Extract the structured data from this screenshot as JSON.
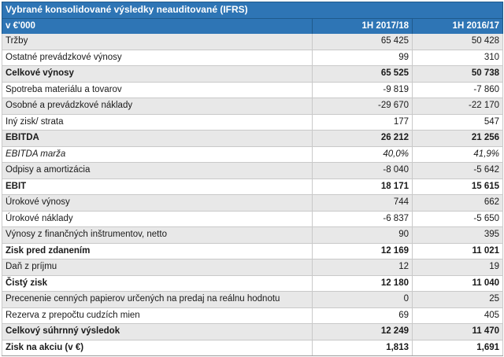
{
  "table": {
    "title": "Vybrané konsolidované výsledky neauditované (IFRS)",
    "header": {
      "unit": "v €'000",
      "col1": "1H 2017/18",
      "col2": "1H 2016/17"
    },
    "rows": [
      {
        "label": "Tržby",
        "v1": "65 425",
        "v2": "50 428",
        "bold": false,
        "italic": false,
        "shaded": true
      },
      {
        "label": "Ostatné prevádzkové výnosy",
        "v1": "99",
        "v2": "310",
        "bold": false,
        "italic": false,
        "shaded": false
      },
      {
        "label": "Celkové výnosy",
        "v1": "65 525",
        "v2": "50 738",
        "bold": true,
        "italic": false,
        "shaded": true
      },
      {
        "label": "Spotreba materiálu a tovarov",
        "v1": "-9 819",
        "v2": "-7 860",
        "bold": false,
        "italic": false,
        "shaded": false
      },
      {
        "label": "Osobné a prevádzkové náklady",
        "v1": "-29 670",
        "v2": "-22 170",
        "bold": false,
        "italic": false,
        "shaded": true
      },
      {
        "label": "Iný zisk/ strata",
        "v1": "177",
        "v2": "547",
        "bold": false,
        "italic": false,
        "shaded": false
      },
      {
        "label": "EBITDA",
        "v1": "26 212",
        "v2": "21 256",
        "bold": true,
        "italic": false,
        "shaded": true
      },
      {
        "label": "EBITDA marža",
        "v1": "40,0%",
        "v2": "41,9%",
        "bold": false,
        "italic": true,
        "shaded": false
      },
      {
        "label": "Odpisy a amortizácia",
        "v1": "-8 040",
        "v2": "-5 642",
        "bold": false,
        "italic": false,
        "shaded": true
      },
      {
        "label": "EBIT",
        "v1": "18 171",
        "v2": "15 615",
        "bold": true,
        "italic": false,
        "shaded": false
      },
      {
        "label": "Úrokové výnosy",
        "v1": "744",
        "v2": "662",
        "bold": false,
        "italic": false,
        "shaded": true
      },
      {
        "label": "Úrokové náklady",
        "v1": "-6 837",
        "v2": "-5 650",
        "bold": false,
        "italic": false,
        "shaded": false
      },
      {
        "label": "Výnosy z finančných inštrumentov, netto",
        "v1": "90",
        "v2": "395",
        "bold": false,
        "italic": false,
        "shaded": true
      },
      {
        "label": "Zisk pred zdanením",
        "v1": "12 169",
        "v2": "11 021",
        "bold": true,
        "italic": false,
        "shaded": false
      },
      {
        "label": "Daň z príjmu",
        "v1": "12",
        "v2": "19",
        "bold": false,
        "italic": false,
        "shaded": true
      },
      {
        "label": "Čistý zisk",
        "v1": "12 180",
        "v2": "11 040",
        "bold": true,
        "italic": false,
        "shaded": false
      },
      {
        "label": "Precenenie cenných papierov určených na predaj  na reálnu hodnotu",
        "v1": "0",
        "v2": "25",
        "bold": false,
        "italic": false,
        "shaded": true
      },
      {
        "label": "Rezerva z prepočtu cudzích mien",
        "v1": "69",
        "v2": "405",
        "bold": false,
        "italic": false,
        "shaded": false
      },
      {
        "label": "Celkový súhrnný výsledok",
        "v1": "12 249",
        "v2": "11 470",
        "bold": true,
        "italic": false,
        "shaded": true
      },
      {
        "label": "Zisk na akciu (v €)",
        "v1": "1,813",
        "v2": "1,691",
        "bold": true,
        "italic": false,
        "shaded": false
      }
    ]
  }
}
